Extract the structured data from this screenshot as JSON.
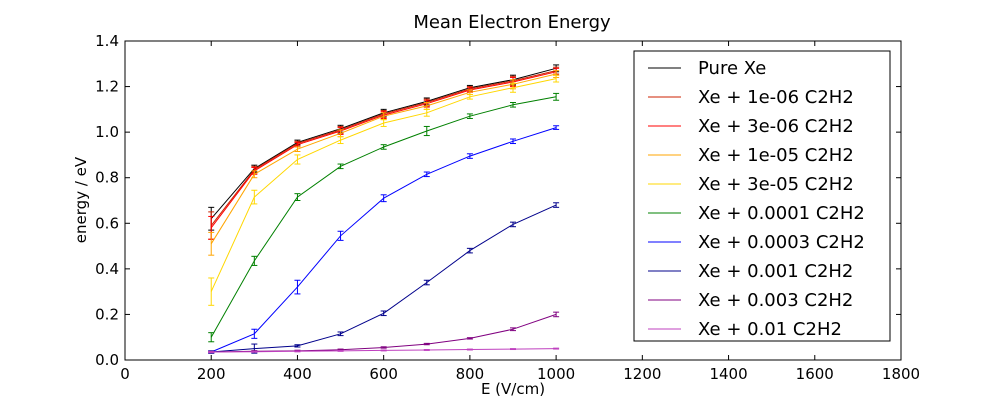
{
  "chart_data": {
    "type": "line",
    "title": "Mean Electron Energy",
    "xlabel": "E (V/cm)",
    "ylabel": "energy / eV",
    "xlim": [
      0,
      1800
    ],
    "ylim": [
      0.0,
      1.4
    ],
    "xticks": [
      "0",
      "200",
      "400",
      "600",
      "800",
      "1000",
      "1200",
      "1400",
      "1600",
      "1800"
    ],
    "xtick_values": [
      0,
      200,
      400,
      600,
      800,
      1000,
      1200,
      1400,
      1600,
      1800
    ],
    "yticks": [
      "0.0",
      "0.2",
      "0.4",
      "0.6",
      "0.8",
      "1.0",
      "1.2",
      "1.4"
    ],
    "ytick_values": [
      0.0,
      0.2,
      0.4,
      0.6,
      0.8,
      1.0,
      1.2,
      1.4
    ],
    "grid": false,
    "legend_position": "right",
    "x": [
      200,
      300,
      400,
      500,
      600,
      700,
      800,
      900,
      1000
    ],
    "series": [
      {
        "name": "Pure Xe",
        "color": "#000000",
        "values": [
          0.62,
          0.84,
          0.955,
          1.015,
          1.085,
          1.135,
          1.195,
          1.23,
          1.28
        ],
        "err": [
          0.05,
          0.015,
          0.01,
          0.015,
          0.015,
          0.015,
          0.01,
          0.02,
          0.015
        ]
      },
      {
        "name": "Xe + 1e-06 C2H2",
        "color": "#cc2200",
        "values": [
          0.59,
          0.835,
          0.95,
          1.01,
          1.08,
          1.13,
          1.19,
          1.225,
          1.27
        ],
        "err": [
          0.06,
          0.015,
          0.01,
          0.015,
          0.015,
          0.015,
          0.01,
          0.02,
          0.015
        ]
      },
      {
        "name": "Xe + 3e-06 C2H2",
        "color": "#ff0000",
        "values": [
          0.58,
          0.83,
          0.945,
          1.005,
          1.075,
          1.125,
          1.185,
          1.22,
          1.265
        ],
        "err": [
          0.05,
          0.015,
          0.01,
          0.015,
          0.015,
          0.015,
          0.01,
          0.02,
          0.015
        ]
      },
      {
        "name": "Xe + 1e-05 C2H2",
        "color": "#ffa500",
        "values": [
          0.51,
          0.815,
          0.925,
          0.995,
          1.07,
          1.115,
          1.175,
          1.21,
          1.255
        ],
        "err": [
          0.05,
          0.015,
          0.01,
          0.015,
          0.015,
          0.015,
          0.01,
          0.02,
          0.015
        ]
      },
      {
        "name": "Xe + 3e-05 C2H2",
        "color": "#ffd700",
        "values": [
          0.3,
          0.715,
          0.88,
          0.965,
          1.04,
          1.085,
          1.155,
          1.195,
          1.235
        ],
        "err": [
          0.06,
          0.03,
          0.02,
          0.015,
          0.015,
          0.015,
          0.01,
          0.02,
          0.015
        ]
      },
      {
        "name": "Xe + 0.0001 C2H2",
        "color": "#008000",
        "values": [
          0.1,
          0.435,
          0.715,
          0.85,
          0.935,
          1.005,
          1.07,
          1.12,
          1.155
        ],
        "err": [
          0.02,
          0.02,
          0.015,
          0.01,
          0.01,
          0.02,
          0.01,
          0.01,
          0.015
        ]
      },
      {
        "name": "Xe + 0.0003 C2H2",
        "color": "#0000ff",
        "values": [
          0.035,
          0.115,
          0.32,
          0.545,
          0.71,
          0.815,
          0.895,
          0.96,
          1.02
        ],
        "err": [
          0.005,
          0.02,
          0.03,
          0.02,
          0.015,
          0.01,
          0.01,
          0.01,
          0.008
        ]
      },
      {
        "name": "Xe + 0.001 C2H2",
        "color": "#00008b",
        "values": [
          0.035,
          0.05,
          0.062,
          0.115,
          0.205,
          0.34,
          0.48,
          0.595,
          0.68
        ],
        "err": [
          0.005,
          0.02,
          0.005,
          0.008,
          0.01,
          0.01,
          0.01,
          0.01,
          0.01
        ]
      },
      {
        "name": "Xe + 0.003 C2H2",
        "color": "#800080",
        "values": [
          0.035,
          0.038,
          0.04,
          0.045,
          0.055,
          0.07,
          0.095,
          0.135,
          0.2
        ],
        "err": [
          0.003,
          0.003,
          0.003,
          0.003,
          0.003,
          0.003,
          0.003,
          0.006,
          0.01
        ]
      },
      {
        "name": "Xe + 0.01 C2H2",
        "color": "#bf40bf",
        "values": [
          0.035,
          0.036,
          0.038,
          0.04,
          0.042,
          0.044,
          0.046,
          0.048,
          0.05
        ],
        "err": [
          0.002,
          0.002,
          0.002,
          0.002,
          0.002,
          0.002,
          0.002,
          0.002,
          0.002
        ]
      }
    ]
  }
}
